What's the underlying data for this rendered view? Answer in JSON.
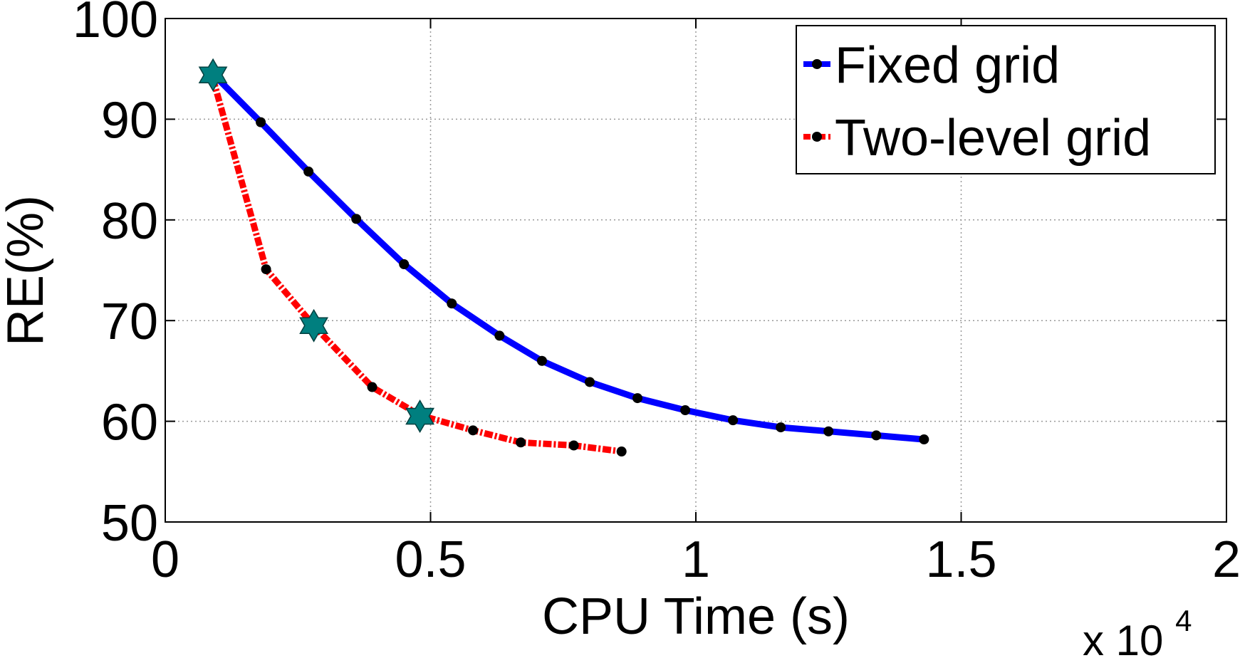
{
  "chart_data": {
    "type": "line",
    "title": "",
    "xlabel": "CPU Time (s)",
    "ylabel": "RE(%)",
    "x_multiplier": {
      "base": "x 10",
      "exponent": "4"
    },
    "xlim": [
      0,
      2
    ],
    "ylim": [
      50,
      100
    ],
    "xticks": [
      0,
      0.5,
      1,
      1.5,
      2
    ],
    "xtick_labels": [
      "0",
      "0.5",
      "1",
      "1.5",
      "2"
    ],
    "yticks": [
      50,
      60,
      70,
      80,
      90,
      100
    ],
    "ytick_labels": [
      "50",
      "60",
      "70",
      "80",
      "90",
      "100"
    ],
    "grid": true,
    "legend_position": "top-right",
    "series": [
      {
        "name": "Fixed grid",
        "color": "#0000ff",
        "line_style": "solid",
        "marker_color": "#000000",
        "x": [
          0.09,
          0.18,
          0.27,
          0.36,
          0.45,
          0.54,
          0.63,
          0.71,
          0.8,
          0.89,
          0.98,
          1.07,
          1.16,
          1.25,
          1.34,
          1.43
        ],
        "y": [
          94.5,
          89.7,
          84.8,
          80.1,
          75.6,
          71.7,
          68.5,
          66.0,
          63.9,
          62.3,
          61.1,
          60.1,
          59.4,
          59.0,
          58.6,
          58.2
        ]
      },
      {
        "name": "Two-level grid",
        "color": "#ff0000",
        "line_style": "dash-dot",
        "marker_color": "#000000",
        "x": [
          0.09,
          0.19,
          0.28,
          0.39,
          0.48,
          0.58,
          0.67,
          0.77,
          0.86
        ],
        "y": [
          94.0,
          75.1,
          69.5,
          63.4,
          60.6,
          59.1,
          57.9,
          57.6,
          57.0
        ],
        "highlight": {
          "marker": "hexagram",
          "color": "#007f7f",
          "x": [
            0.09,
            0.28,
            0.48
          ],
          "y": [
            94.4,
            69.5,
            60.5
          ]
        }
      }
    ]
  }
}
